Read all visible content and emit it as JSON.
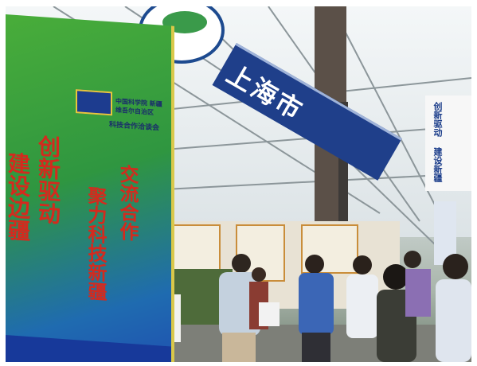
{
  "booth_board": {
    "org_name": "中国科学院 新疆维吾尔自治区",
    "subtitle": "科技合作洽谈会",
    "slogan_col1": "创新驱动",
    "slogan_col2": "聚力科技新疆",
    "slogan_col3": "交流合作",
    "partial_edge": "建设边疆"
  },
  "ceiling_banner": {
    "city_name": "上海市"
  },
  "right_hanging_banner": {
    "text": "创新驱动 建设新疆"
  },
  "colors": {
    "board_green": "#2f9e2f",
    "board_blue": "#1f4fb0",
    "slogan_red": "#d42a1e",
    "banner_navy": "#1f3f8a"
  }
}
